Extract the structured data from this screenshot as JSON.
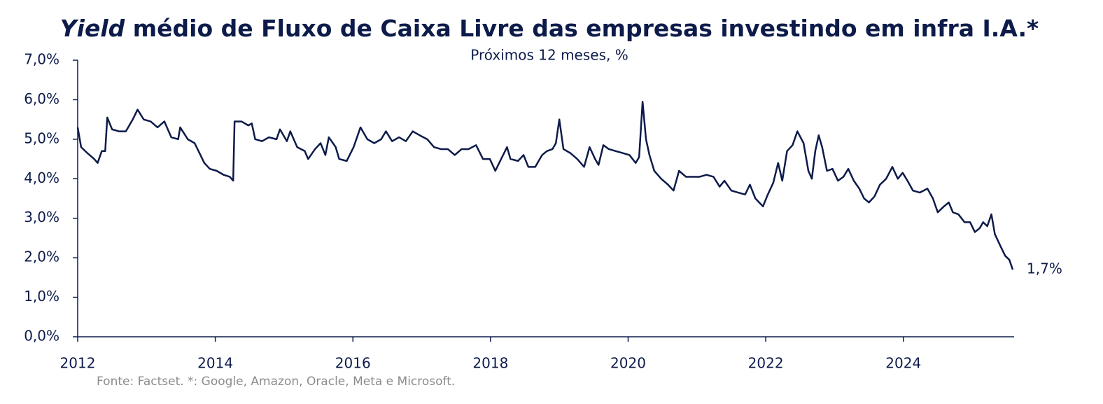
{
  "chart_data": {
    "type": "line",
    "title": [
      "Yield",
      "médio de Fluxo de Caixa Livre das empresas investindo em infra I.A.*"
    ],
    "subtitle": "Próximos 12 meses, %",
    "source": "Fonte: Factset. *: Google, Amazon, Oracle, Meta e Microsoft.",
    "end_label": "1,7%",
    "color": "#0d1b4a",
    "x": [
      2012.0,
      2012.05,
      2012.14,
      2012.24,
      2012.29,
      2012.35,
      2012.4,
      2012.43,
      2012.5,
      2012.6,
      2012.7,
      2012.8,
      2012.87,
      2012.96,
      2013.06,
      2013.16,
      2013.26,
      2013.36,
      2013.46,
      2013.49,
      2013.6,
      2013.7,
      2013.77,
      2013.84,
      2013.92,
      2014.02,
      2014.12,
      2014.21,
      2014.26,
      2014.28,
      2014.38,
      2014.48,
      2014.53,
      2014.58,
      2014.68,
      2014.78,
      2014.89,
      2014.94,
      2015.04,
      2015.09,
      2015.19,
      2015.3,
      2015.35,
      2015.45,
      2015.53,
      2015.6,
      2015.65,
      2015.75,
      2015.8,
      2015.91,
      2016.01,
      2016.11,
      2016.21,
      2016.31,
      2016.41,
      2016.48,
      2016.57,
      2016.67,
      2016.77,
      2016.87,
      2016.97,
      2017.08,
      2017.18,
      2017.28,
      2017.38,
      2017.48,
      2017.58,
      2017.68,
      2017.79,
      2017.89,
      2017.99,
      2018.07,
      2018.14,
      2018.24,
      2018.29,
      2018.4,
      2018.48,
      2018.55,
      2018.65,
      2018.75,
      2018.82,
      2018.9,
      2018.95,
      2019.0,
      2019.06,
      2019.16,
      2019.26,
      2019.36,
      2019.44,
      2019.52,
      2019.57,
      2019.64,
      2019.72,
      2019.82,
      2019.92,
      2020.02,
      2020.11,
      2020.16,
      2020.21,
      2020.26,
      2020.31,
      2020.38,
      2020.48,
      2020.58,
      2020.66,
      2020.74,
      2020.84,
      2020.94,
      2021.04,
      2021.14,
      2021.24,
      2021.33,
      2021.4,
      2021.5,
      2021.6,
      2021.7,
      2021.77,
      2021.85,
      2021.96,
      2022.03,
      2022.11,
      2022.18,
      2022.24,
      2022.31,
      2022.39,
      2022.46,
      2022.55,
      2022.62,
      2022.67,
      2022.72,
      2022.77,
      2022.82,
      2022.89,
      2022.97,
      2023.05,
      2023.13,
      2023.2,
      2023.28,
      2023.36,
      2023.43,
      2023.5,
      2023.58,
      2023.66,
      2023.75,
      2023.84,
      2023.92,
      2023.99,
      2024.06,
      2024.14,
      2024.24,
      2024.35,
      2024.43,
      2024.5,
      2024.59,
      2024.66,
      2024.72,
      2024.8,
      2024.89,
      2024.97,
      2025.04,
      2025.11,
      2025.16,
      2025.22,
      2025.28,
      2025.33,
      2025.41,
      2025.48,
      2025.54,
      2025.59
    ],
    "values": [
      5.3,
      4.8,
      4.65,
      4.5,
      4.4,
      4.7,
      4.7,
      5.55,
      5.25,
      5.2,
      5.2,
      5.5,
      5.75,
      5.5,
      5.45,
      5.3,
      5.45,
      5.05,
      5.0,
      5.3,
      5.0,
      4.9,
      4.65,
      4.4,
      4.25,
      4.2,
      4.1,
      4.05,
      3.95,
      5.45,
      5.45,
      5.35,
      5.4,
      5.0,
      4.95,
      5.05,
      5.0,
      5.25,
      4.95,
      5.2,
      4.8,
      4.7,
      4.5,
      4.75,
      4.9,
      4.6,
      5.05,
      4.8,
      4.5,
      4.45,
      4.8,
      5.3,
      5.0,
      4.9,
      5.0,
      5.2,
      4.95,
      5.05,
      4.95,
      5.2,
      5.1,
      5.0,
      4.8,
      4.75,
      4.75,
      4.6,
      4.75,
      4.75,
      4.85,
      4.5,
      4.5,
      4.2,
      4.45,
      4.8,
      4.5,
      4.45,
      4.6,
      4.3,
      4.3,
      4.6,
      4.7,
      4.75,
      4.9,
      5.5,
      4.75,
      4.65,
      4.5,
      4.3,
      4.8,
      4.5,
      4.35,
      4.85,
      4.75,
      4.7,
      4.65,
      4.6,
      4.4,
      4.55,
      5.95,
      5.0,
      4.6,
      4.2,
      4.0,
      3.85,
      3.7,
      4.2,
      4.05,
      4.05,
      4.05,
      4.1,
      4.05,
      3.8,
      3.95,
      3.7,
      3.65,
      3.6,
      3.85,
      3.5,
      3.3,
      3.6,
      3.9,
      4.4,
      3.95,
      4.7,
      4.85,
      5.2,
      4.9,
      4.2,
      4.0,
      4.7,
      5.1,
      4.8,
      4.2,
      4.25,
      3.95,
      4.05,
      4.25,
      3.95,
      3.75,
      3.5,
      3.4,
      3.55,
      3.85,
      4.0,
      4.3,
      4.0,
      4.15,
      3.95,
      3.7,
      3.65,
      3.75,
      3.5,
      3.15,
      3.3,
      3.4,
      3.15,
      3.1,
      2.9,
      2.9,
      2.65,
      2.75,
      2.9,
      2.8,
      3.1,
      2.6,
      2.3,
      2.05,
      1.95,
      1.7
    ],
    "xlim": [
      2012,
      2025.61
    ],
    "xticks": [
      2012,
      2014,
      2016,
      2018,
      2020,
      2022,
      2024
    ],
    "ylim": [
      0,
      7
    ],
    "yticks": [
      {
        "value": 0,
        "label": "0,0%"
      },
      {
        "value": 1,
        "label": "1,0%"
      },
      {
        "value": 2,
        "label": "2,0%"
      },
      {
        "value": 3,
        "label": "3,0%"
      },
      {
        "value": 4,
        "label": "4,0%"
      },
      {
        "value": 5,
        "label": "5,0%"
      },
      {
        "value": 6,
        "label": "6,0%"
      },
      {
        "value": 7,
        "label": "7,0%"
      }
    ],
    "grid": false
  }
}
